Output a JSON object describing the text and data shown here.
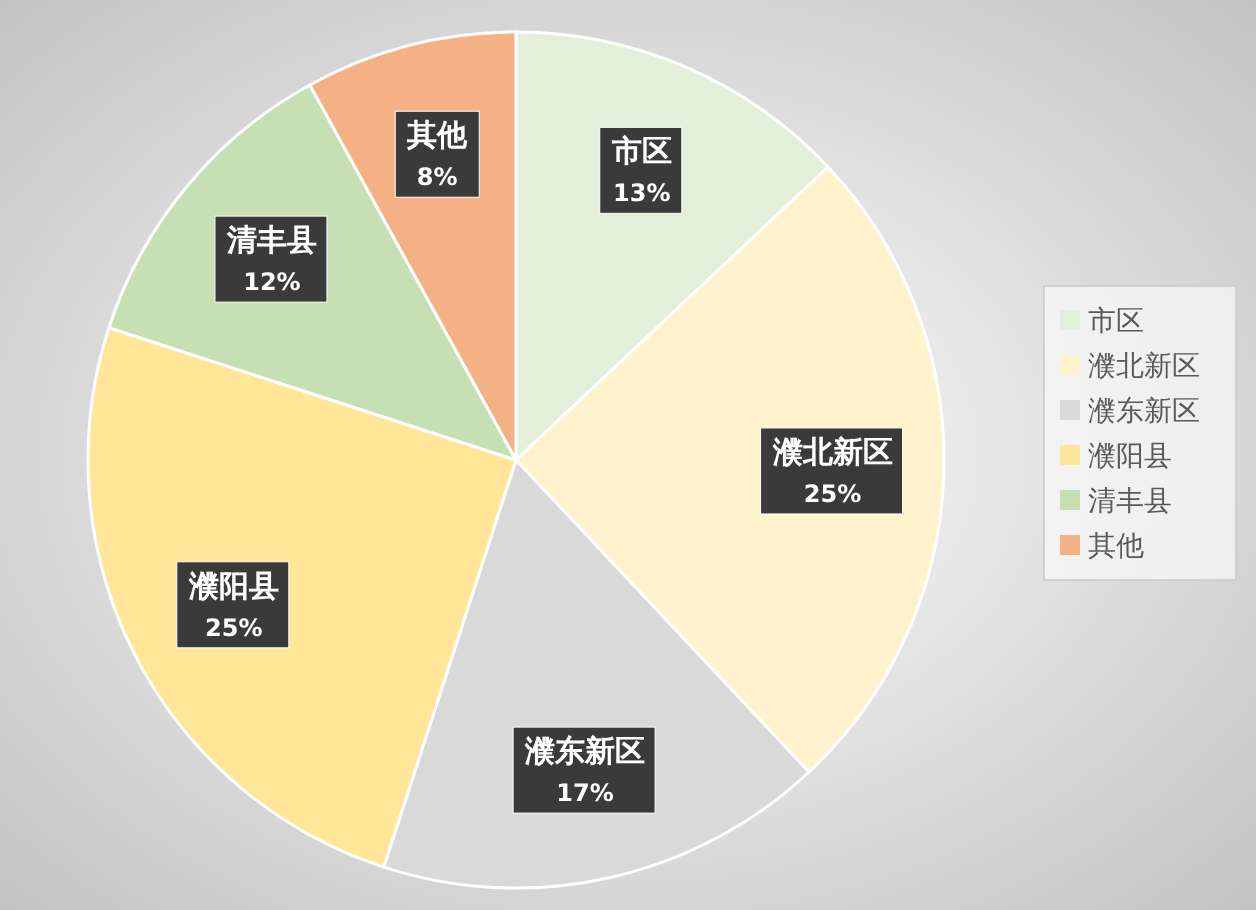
{
  "chart_data": {
    "type": "pie",
    "categories": [
      "市区",
      "濮北新区",
      "濮东新区",
      "濮阳县",
      "清丰县",
      "其他"
    ],
    "values": [
      13,
      25,
      17,
      25,
      12,
      8
    ],
    "colors": [
      "#e2efda",
      "#fff2cc",
      "#d9d9d9",
      "#ffe699",
      "#c6e0b4",
      "#f4b183"
    ],
    "value_labels": [
      "13%",
      "25%",
      "17%",
      "25%",
      "12%",
      "8%"
    ],
    "legend": "right"
  }
}
